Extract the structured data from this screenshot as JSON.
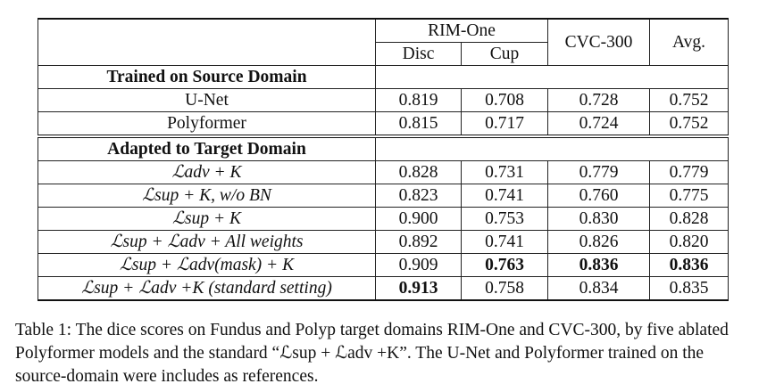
{
  "table": {
    "header": {
      "group_rim": "RIM-One",
      "disc": "Disc",
      "cup": "Cup",
      "cvc": "CVC-300",
      "avg": "Avg."
    },
    "section_source": "Trained on Source Domain",
    "source_rows": [
      {
        "method": "U-Net",
        "disc": "0.819",
        "cup": "0.708",
        "cvc": "0.728",
        "avg": "0.752"
      },
      {
        "method": "Polyformer",
        "disc": "0.815",
        "cup": "0.717",
        "cvc": "0.724",
        "avg": "0.752"
      }
    ],
    "section_target": "Adapted to Target Domain",
    "target_rows": [
      {
        "method": "ℒadv + K",
        "disc": "0.828",
        "cup": "0.731",
        "cvc": "0.779",
        "avg": "0.779"
      },
      {
        "method": "ℒsup + K, w/o BN",
        "disc": "0.823",
        "cup": "0.741",
        "cvc": "0.760",
        "avg": "0.775"
      },
      {
        "method": "ℒsup + K",
        "disc": "0.900",
        "cup": "0.753",
        "cvc": "0.830",
        "avg": "0.828"
      },
      {
        "method": "ℒsup + ℒadv + All weights",
        "disc": "0.892",
        "cup": "0.741",
        "cvc": "0.826",
        "avg": "0.820"
      },
      {
        "method": "ℒsup + ℒadv(mask) + K",
        "disc": "0.909",
        "cup": "0.763",
        "cvc": "0.836",
        "avg": "0.836"
      },
      {
        "method": "ℒsup + ℒadv +K (standard setting)",
        "disc": "0.913",
        "cup": "0.758",
        "cvc": "0.834",
        "avg": "0.835"
      }
    ]
  },
  "caption": "Table 1: The dice scores on Fundus and Polyp target domains RIM-One and CVC-300, by five ablated Polyformer models and the standard “ℒsup + ℒadv +K”. The U-Net and Polyformer trained on the source-domain were includes as references."
}
